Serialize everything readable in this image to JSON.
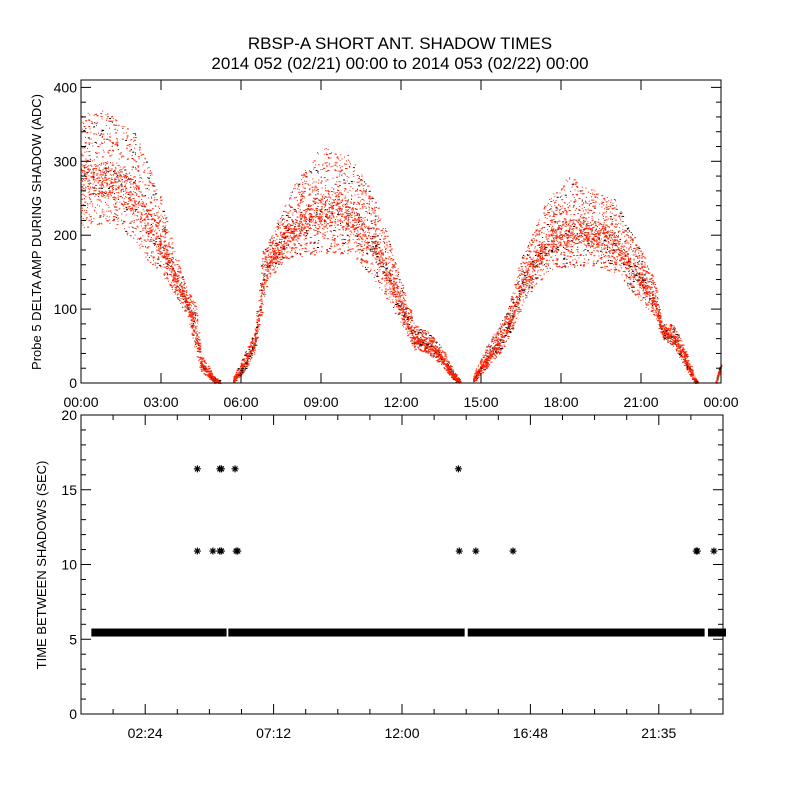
{
  "title": "RBSP-A SHORT ANT. SHADOW TIMES",
  "subtitle": "2014 052 (02/21) 00:00 to 2014 053 (02/22) 00:00",
  "colors": {
    "primary_points": "#ff2000",
    "secondary_points": "#000000",
    "axes": "#000000"
  },
  "chart_data": [
    {
      "type": "scatter",
      "ylabel": "Probe 5 DELTA AMP DURING SHADOW (ADC)",
      "xlabel": "",
      "xlim_hours": [
        0,
        24
      ],
      "ylim": [
        0,
        410
      ],
      "x_tick_labels": [
        "00:00",
        "03:00",
        "06:00",
        "09:00",
        "12:00",
        "15:00",
        "18:00",
        "21:00",
        "00:00"
      ],
      "x_tick_hours": [
        0,
        3,
        6,
        9,
        12,
        15,
        18,
        21,
        24
      ],
      "y_ticks": [
        0,
        100,
        200,
        300,
        400
      ],
      "y_tick_labels": [
        "0",
        "100",
        "200",
        "300",
        "400"
      ],
      "point_colors": [
        "red",
        "black"
      ],
      "envelope": [
        [
          [
            0,
            210,
            365
          ],
          [
            1,
            215,
            370
          ],
          [
            2,
            195,
            340
          ],
          [
            2.5,
            165,
            300
          ],
          [
            3,
            150,
            250
          ],
          [
            3.5,
            120,
            180
          ],
          [
            4,
            90,
            125
          ],
          [
            4.3,
            40,
            110
          ],
          [
            4.5,
            15,
            40
          ],
          [
            5,
            0,
            8
          ],
          [
            5.2,
            0,
            4
          ]
        ],
        [
          [
            5.7,
            0,
            8
          ],
          [
            6,
            10,
            30
          ],
          [
            6.5,
            40,
            70
          ],
          [
            6.8,
            100,
            180
          ],
          [
            7,
            140,
            190
          ],
          [
            7.5,
            160,
            230
          ],
          [
            8,
            170,
            270
          ],
          [
            9,
            175,
            320
          ],
          [
            10,
            175,
            310
          ],
          [
            10.5,
            160,
            285
          ],
          [
            11,
            140,
            250
          ],
          [
            11.5,
            110,
            200
          ],
          [
            12,
            80,
            140
          ],
          [
            12.5,
            45,
            80
          ],
          [
            13,
            40,
            70
          ],
          [
            13.5,
            25,
            50
          ],
          [
            14,
            2,
            15
          ],
          [
            14.2,
            0,
            5
          ]
        ],
        [
          [
            14.7,
            0,
            10
          ],
          [
            15.2,
            20,
            50
          ],
          [
            15.7,
            40,
            80
          ],
          [
            16,
            60,
            100
          ],
          [
            16.5,
            100,
            170
          ],
          [
            17,
            130,
            210
          ],
          [
            17.5,
            150,
            250
          ],
          [
            18.3,
            155,
            280
          ],
          [
            19,
            160,
            265
          ],
          [
            20,
            150,
            250
          ],
          [
            20.5,
            130,
            215
          ],
          [
            21,
            110,
            180
          ],
          [
            21.5,
            90,
            140
          ],
          [
            21.8,
            60,
            80
          ],
          [
            22.2,
            50,
            80
          ],
          [
            22.5,
            30,
            60
          ],
          [
            23,
            0,
            10
          ],
          [
            23.1,
            0,
            4
          ]
        ],
        [
          [
            23.8,
            0,
            5
          ],
          [
            24,
            20,
            30
          ]
        ]
      ]
    },
    {
      "type": "scatter",
      "ylabel": "TIME BETWEEN SHADOWS (SEC)",
      "xlabel": "",
      "xlim_hours": [
        0,
        24
      ],
      "ylim": [
        0,
        20
      ],
      "x_tick_labels": [
        "02:24",
        "07:12",
        "12:00",
        "16:48",
        "21:35"
      ],
      "x_tick_hours": [
        2.4,
        7.2,
        12.0,
        16.8,
        21.6
      ],
      "y_ticks": [
        0,
        5,
        10,
        15,
        20
      ],
      "y_tick_labels": [
        "0",
        "5",
        "10",
        "15",
        "20"
      ],
      "marker": "asterisk",
      "dense_segments": [
        {
          "start_hour": 0.5,
          "end_hour": 5.33,
          "value": 5.45
        },
        {
          "start_hour": 5.62,
          "end_hour": 14.23,
          "value": 5.45
        },
        {
          "start_hour": 14.57,
          "end_hour": 23.2,
          "value": 5.45
        },
        {
          "start_hour": 23.55,
          "end_hour": 24.0,
          "value": 5.45
        }
      ],
      "points": [
        {
          "hour": 4.35,
          "value": 16.4
        },
        {
          "hour": 4.35,
          "value": 10.9
        },
        {
          "hour": 4.93,
          "value": 10.9
        },
        {
          "hour": 5.19,
          "value": 16.4
        },
        {
          "hour": 5.19,
          "value": 10.9
        },
        {
          "hour": 5.25,
          "value": 16.4
        },
        {
          "hour": 5.25,
          "value": 10.9
        },
        {
          "hour": 5.76,
          "value": 16.4
        },
        {
          "hour": 5.8,
          "value": 10.9
        },
        {
          "hour": 5.86,
          "value": 10.9
        },
        {
          "hour": 14.11,
          "value": 16.4
        },
        {
          "hour": 14.14,
          "value": 10.9
        },
        {
          "hour": 14.76,
          "value": 10.9
        },
        {
          "hour": 16.15,
          "value": 10.9
        },
        {
          "hour": 23.0,
          "value": 10.9
        },
        {
          "hour": 23.04,
          "value": 10.9
        },
        {
          "hour": 23.66,
          "value": 10.9
        }
      ]
    }
  ]
}
